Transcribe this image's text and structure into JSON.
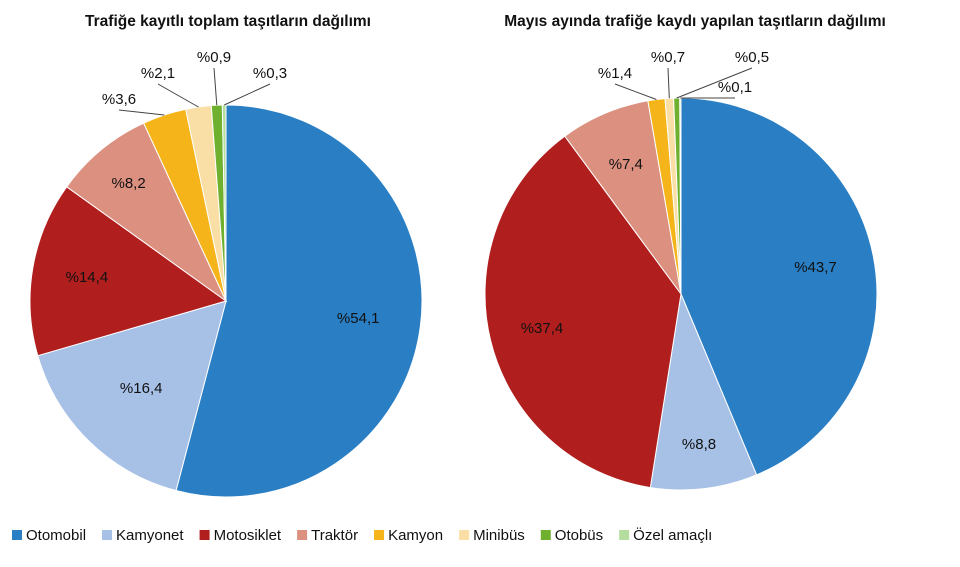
{
  "chart_data": [
    {
      "type": "pie",
      "title": "Trafiğe kayıtlı toplam taşıtların dağılımı",
      "start_angle_deg": 0,
      "direction": "clockwise",
      "slices": [
        {
          "name": "Otomobil",
          "value": 54.1,
          "label": "%54,1",
          "color": "#2a7ec4"
        },
        {
          "name": "Kamyonet",
          "value": 16.4,
          "label": "%16,4",
          "color": "#a6c0e6"
        },
        {
          "name": "Motosiklet",
          "value": 14.4,
          "label": "%14,4",
          "color": "#b01e1e"
        },
        {
          "name": "Traktör",
          "value": 8.2,
          "label": "%8,2",
          "color": "#dc9080"
        },
        {
          "name": "Kamyon",
          "value": 3.6,
          "label": "%3,6",
          "color": "#f5b419"
        },
        {
          "name": "Minibüs",
          "value": 2.1,
          "label": "%2,1",
          "color": "#f9dfa5"
        },
        {
          "name": "Otobüs",
          "value": 0.9,
          "label": "%0,9",
          "color": "#6fb12f"
        },
        {
          "name": "Özel amaçlı",
          "value": 0.3,
          "label": "%0,3",
          "color": "#b6dda0"
        }
      ]
    },
    {
      "type": "pie",
      "title": "Mayıs ayında trafiğe kaydı yapılan taşıtların dağılımı",
      "start_angle_deg": 0,
      "direction": "clockwise",
      "slices": [
        {
          "name": "Otomobil",
          "value": 43.7,
          "label": "%43,7",
          "color": "#2a7ec4"
        },
        {
          "name": "Kamyonet",
          "value": 8.8,
          "label": "%8,8",
          "color": "#a6c0e6"
        },
        {
          "name": "Motosiklet",
          "value": 37.4,
          "label": "%37,4",
          "color": "#b01e1e"
        },
        {
          "name": "Traktör",
          "value": 7.4,
          "label": "%7,4",
          "color": "#dc9080"
        },
        {
          "name": "Kamyon",
          "value": 1.4,
          "label": "%1,4",
          "color": "#f5b419"
        },
        {
          "name": "Minibüs",
          "value": 0.7,
          "label": "%0,7",
          "color": "#f9dfa5"
        },
        {
          "name": "Otobüs",
          "value": 0.5,
          "label": "%0,5",
          "color": "#6fb12f"
        },
        {
          "name": "Özel amaçlı",
          "value": 0.1,
          "label": "%0,1",
          "color": "#b6dda0"
        }
      ]
    }
  ],
  "legend": {
    "position": "bottom",
    "items": [
      {
        "name": "Otomobil",
        "color": "#2a7ec4"
      },
      {
        "name": "Kamyonet",
        "color": "#a6c0e6"
      },
      {
        "name": "Motosiklet",
        "color": "#b01e1e"
      },
      {
        "name": "Traktör",
        "color": "#dc9080"
      },
      {
        "name": "Kamyon",
        "color": "#f5b419"
      },
      {
        "name": "Minibüs",
        "color": "#f9dfa5"
      },
      {
        "name": "Otobüs",
        "color": "#6fb12f"
      },
      {
        "name": "Özel amaçlı",
        "color": "#b6dda0"
      }
    ]
  }
}
